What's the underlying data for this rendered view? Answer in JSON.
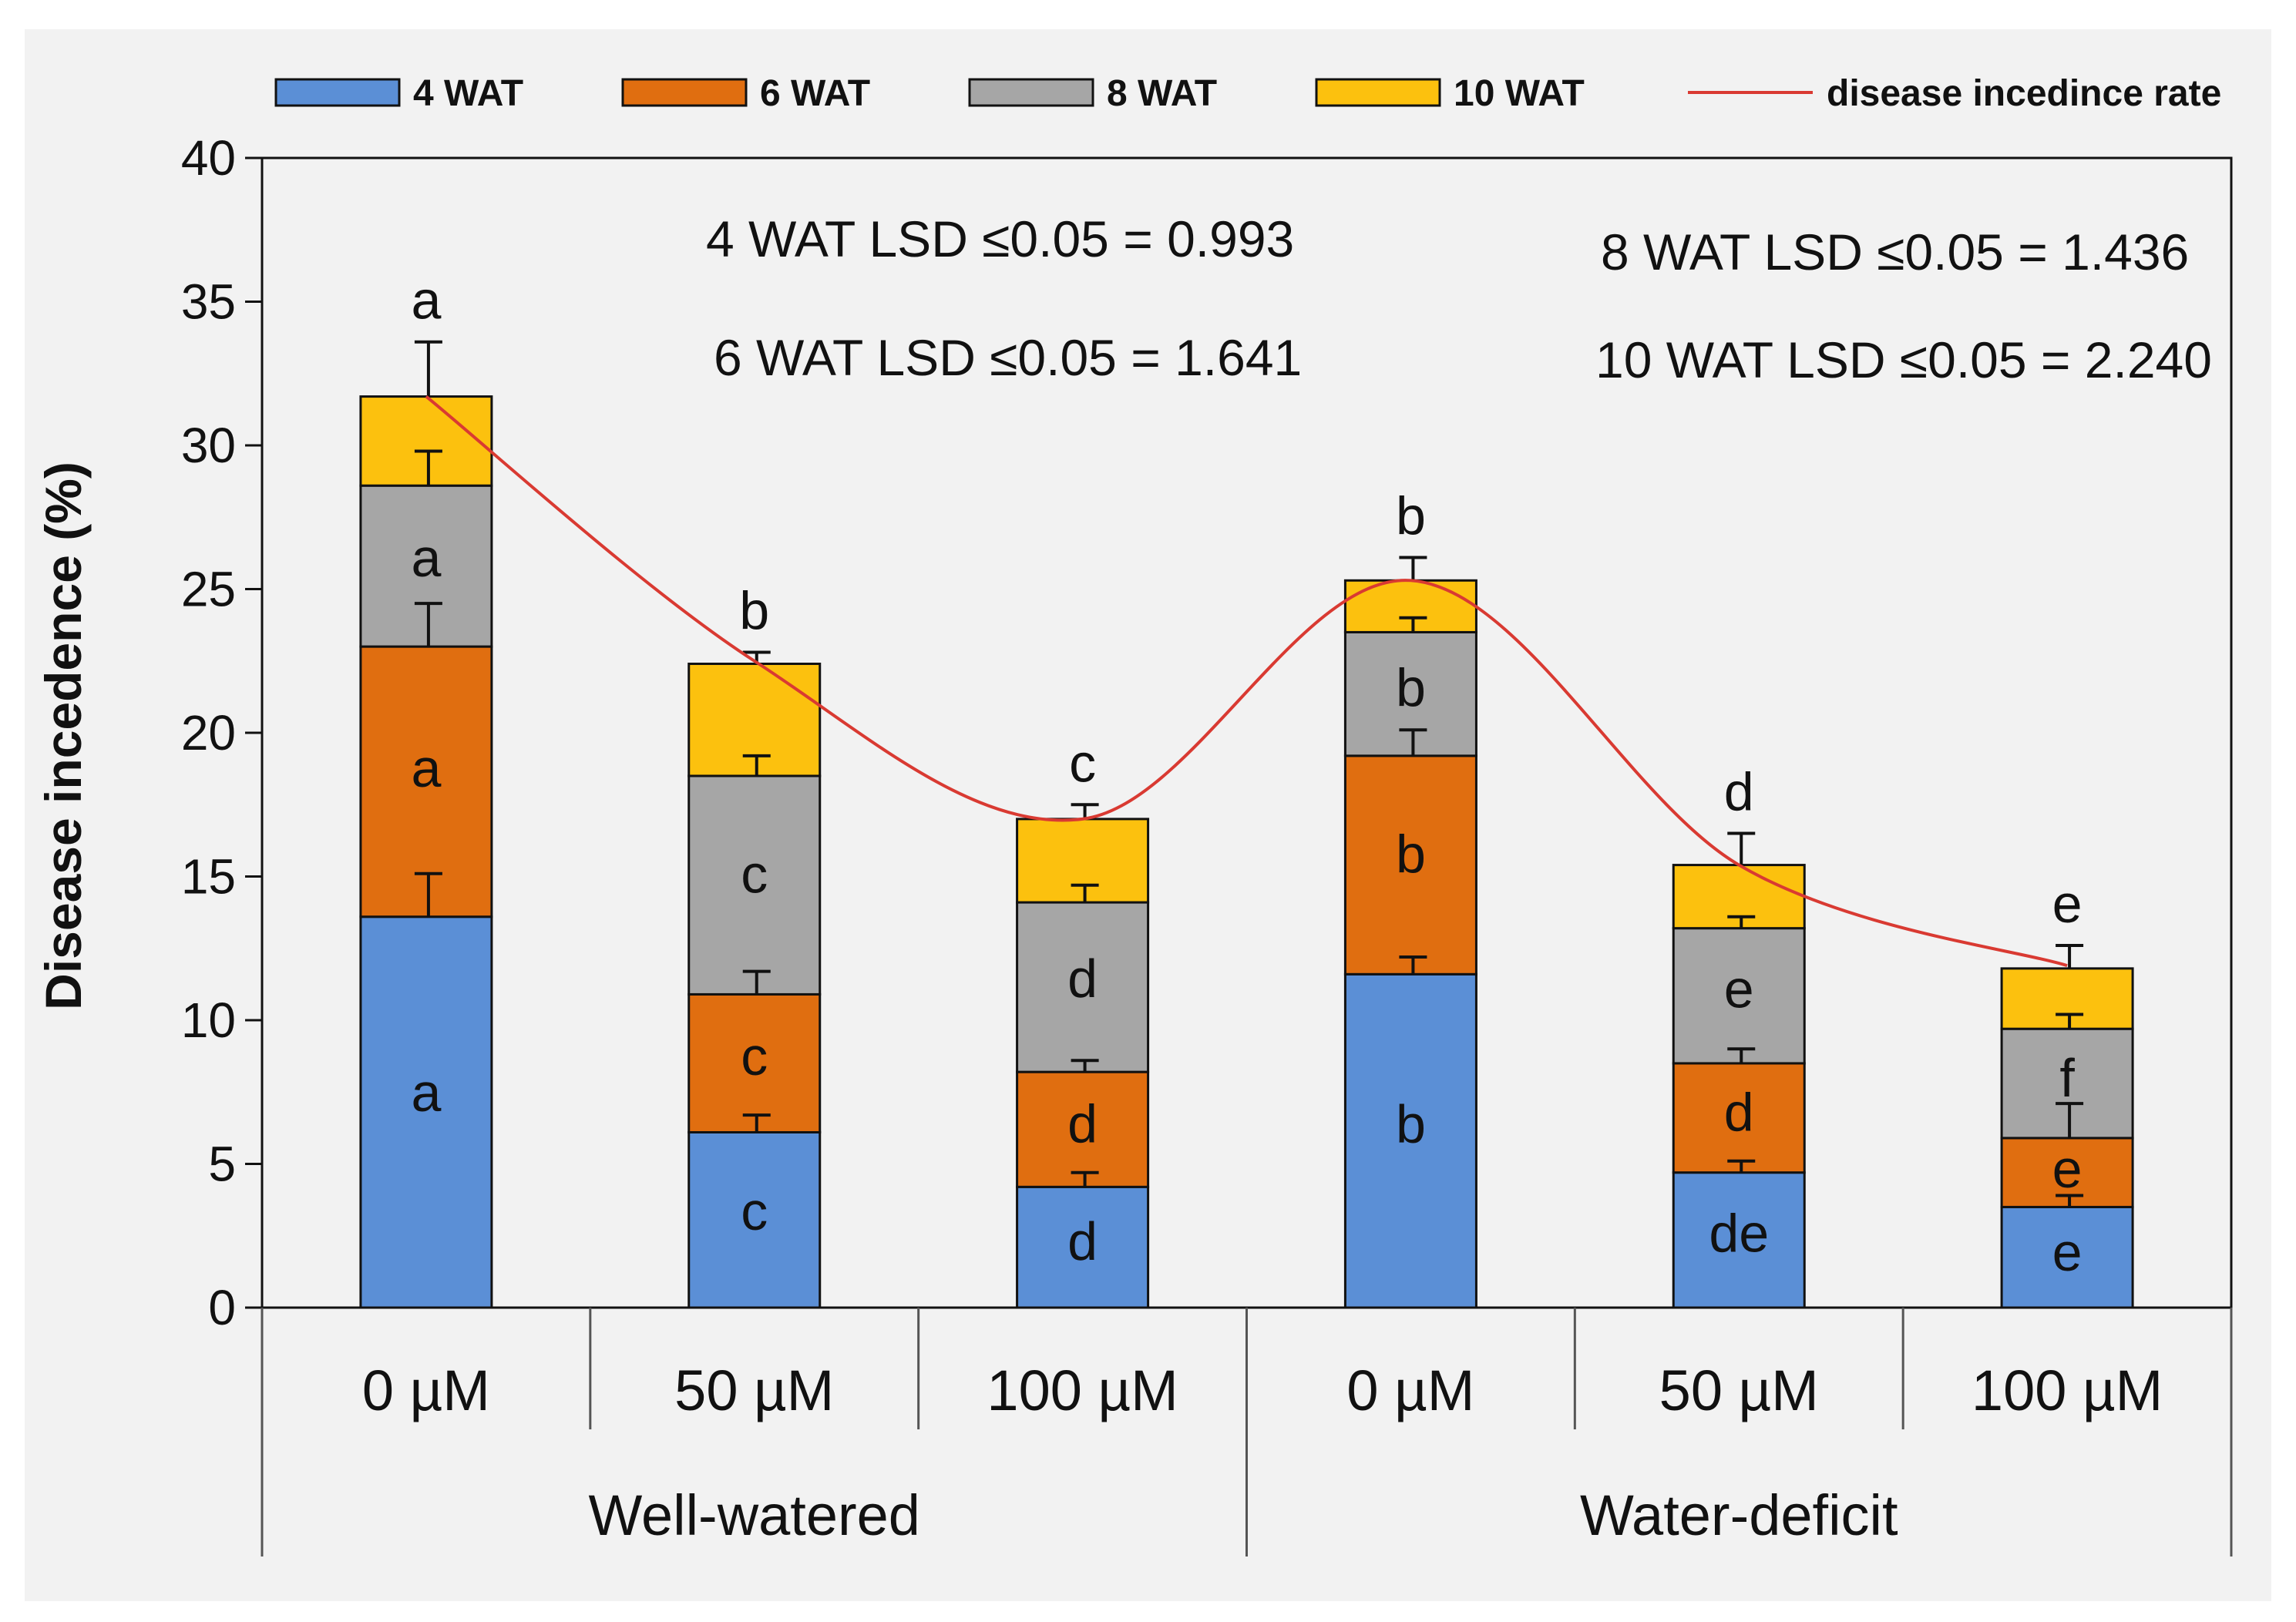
{
  "chart_data": {
    "type": "bar",
    "stacked": true,
    "ylabel": "Disease incedence (%)",
    "ylim": [
      0,
      40
    ],
    "yticks": [
      0,
      5,
      10,
      15,
      20,
      25,
      30,
      35,
      40
    ],
    "categories": [
      "0 µM",
      "50 µM",
      "100 µM",
      "0 µM",
      "50 µM",
      "100 µM"
    ],
    "groups": [
      {
        "label": "Well-watered",
        "span": [
          0,
          2
        ]
      },
      {
        "label": "Water-deficit",
        "span": [
          3,
          5
        ]
      }
    ],
    "series": [
      {
        "name": "4 WAT",
        "color": "#5b8fd6",
        "values": [
          13.6,
          6.1,
          4.2,
          11.6,
          4.7,
          3.5
        ],
        "errors": [
          1.5,
          0.6,
          0.5,
          0.6,
          0.4,
          0.4
        ],
        "letters": [
          "a",
          "c",
          "d",
          "b",
          "de",
          "e"
        ]
      },
      {
        "name": "6 WAT",
        "color": "#e06e10",
        "values": [
          9.4,
          4.8,
          4.0,
          7.6,
          3.8,
          2.4
        ],
        "errors": [
          1.5,
          0.8,
          0.4,
          0.9,
          0.5,
          1.2
        ],
        "letters": [
          "a",
          "c",
          "d",
          "b",
          "d",
          "e"
        ]
      },
      {
        "name": "8 WAT",
        "color": "#a6a6a6",
        "values": [
          5.6,
          7.6,
          5.9,
          4.3,
          4.7,
          3.8
        ],
        "errors": [
          1.2,
          0.7,
          0.6,
          0.5,
          0.4,
          0.5
        ],
        "letters": [
          "a",
          "c",
          "d",
          "b",
          "e",
          "f"
        ]
      },
      {
        "name": "10 WAT",
        "color": "#fcc10e",
        "values": [
          3.1,
          3.9,
          2.9,
          1.8,
          2.2,
          2.1
        ],
        "errors": [
          1.9,
          0.4,
          0.5,
          0.8,
          1.1,
          0.8
        ],
        "letters": [
          "a",
          "b",
          "c",
          "b",
          "d",
          "e"
        ]
      }
    ],
    "line": {
      "name": "disease incedince rate",
      "color": "#d93a32",
      "values": [
        31.7,
        22.5,
        17.0,
        25.3,
        15.4,
        11.9
      ]
    },
    "annotations": [
      "4 WAT LSD ≤0.05 = 0.993",
      "6 WAT LSD ≤0.05 = 1.641",
      "8 WAT LSD ≤0.05 = 1.436",
      "10 WAT LSD ≤0.05 = 2.240"
    ],
    "legend_position": "top"
  }
}
